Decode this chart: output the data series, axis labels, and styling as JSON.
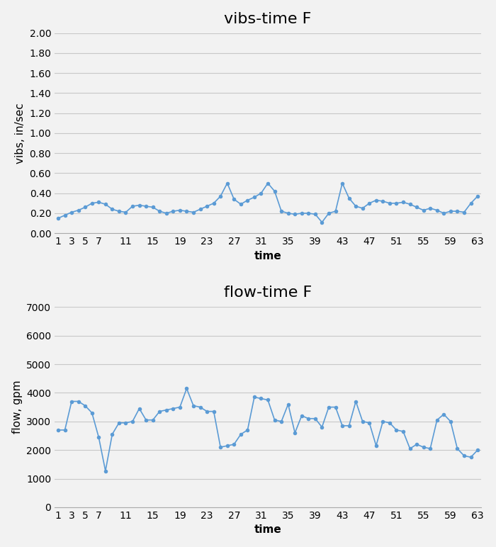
{
  "vibs_title": "vibs-time F",
  "flow_title": "flow-time F",
  "xlabel": "time",
  "vibs_ylabel": "vibs, in/sec",
  "flow_ylabel": "flow, gpm",
  "line_color": "#5B9BD5",
  "marker_color": "#5B9BD5",
  "vibs_ylim": [
    0.0,
    2.0
  ],
  "vibs_yticks": [
    0.0,
    0.2,
    0.4,
    0.6,
    0.8,
    1.0,
    1.2,
    1.4,
    1.6,
    1.8,
    2.0
  ],
  "flow_ylim": [
    0,
    7000
  ],
  "flow_yticks": [
    0,
    1000,
    2000,
    3000,
    4000,
    5000,
    6000,
    7000
  ],
  "xticks": [
    1,
    3,
    5,
    7,
    11,
    15,
    19,
    23,
    27,
    31,
    35,
    39,
    43,
    47,
    51,
    55,
    59,
    63
  ],
  "vibs_x": [
    1,
    2,
    3,
    4,
    5,
    6,
    7,
    8,
    9,
    10,
    11,
    12,
    13,
    14,
    15,
    16,
    17,
    18,
    19,
    20,
    21,
    22,
    23,
    24,
    25,
    26,
    27,
    28,
    29,
    30,
    31,
    32,
    33,
    34,
    35,
    36,
    37,
    38,
    39,
    40,
    41,
    42,
    43,
    44,
    45,
    46,
    47,
    48,
    49,
    50,
    51,
    52,
    53,
    54,
    55,
    56,
    57,
    58,
    59,
    60,
    61,
    62,
    63
  ],
  "vibs_data": [
    0.15,
    0.18,
    0.21,
    0.23,
    0.26,
    0.3,
    0.31,
    0.29,
    0.24,
    0.22,
    0.21,
    0.27,
    0.28,
    0.27,
    0.26,
    0.22,
    0.2,
    0.22,
    0.23,
    0.22,
    0.21,
    0.24,
    0.27,
    0.3,
    0.37,
    0.5,
    0.34,
    0.29,
    0.33,
    0.36,
    0.4,
    0.5,
    0.42,
    0.22,
    0.2,
    0.19,
    0.2,
    0.2,
    0.19,
    0.11,
    0.2,
    0.22,
    0.5,
    0.35,
    0.27,
    0.25,
    0.3,
    0.33,
    0.32,
    0.3,
    0.3,
    0.31,
    0.29,
    0.26,
    0.23,
    0.25,
    0.23,
    0.2,
    0.22,
    0.22,
    0.21,
    0.3,
    0.37
  ],
  "flow_x": [
    1,
    2,
    3,
    4,
    5,
    6,
    7,
    8,
    9,
    10,
    11,
    12,
    13,
    14,
    15,
    16,
    17,
    18,
    19,
    20,
    21,
    22,
    23,
    24,
    25,
    26,
    27,
    28,
    29,
    30,
    31,
    32,
    33,
    34,
    35,
    36,
    37,
    38,
    39,
    40,
    41,
    42,
    43,
    44,
    45,
    46,
    47,
    48,
    49,
    50,
    51,
    52,
    53,
    54,
    55,
    56,
    57,
    58,
    59,
    60,
    61,
    62,
    63
  ],
  "flow_data": [
    2700,
    2700,
    3700,
    3700,
    3550,
    3300,
    2450,
    1270,
    2550,
    2950,
    2950,
    3000,
    3450,
    3050,
    3050,
    3350,
    3400,
    3450,
    3500,
    4150,
    3550,
    3500,
    3350,
    3350,
    2100,
    2150,
    2200,
    2550,
    2700,
    3850,
    3800,
    3750,
    3050,
    3000,
    3600,
    2600,
    3200,
    3100,
    3100,
    2800,
    3500,
    3500,
    2850,
    2850,
    3700,
    3000,
    2950,
    2150,
    3000,
    2950,
    2700,
    2650,
    2050,
    2200,
    2100,
    2050,
    3050,
    3250,
    3000,
    2050,
    1800,
    1750,
    2000
  ],
  "background_color": "#f2f2f2",
  "grid_color": "#c8c8c8",
  "title_fontsize": 16,
  "label_fontsize": 11,
  "tick_fontsize": 10,
  "marker_size": 4
}
